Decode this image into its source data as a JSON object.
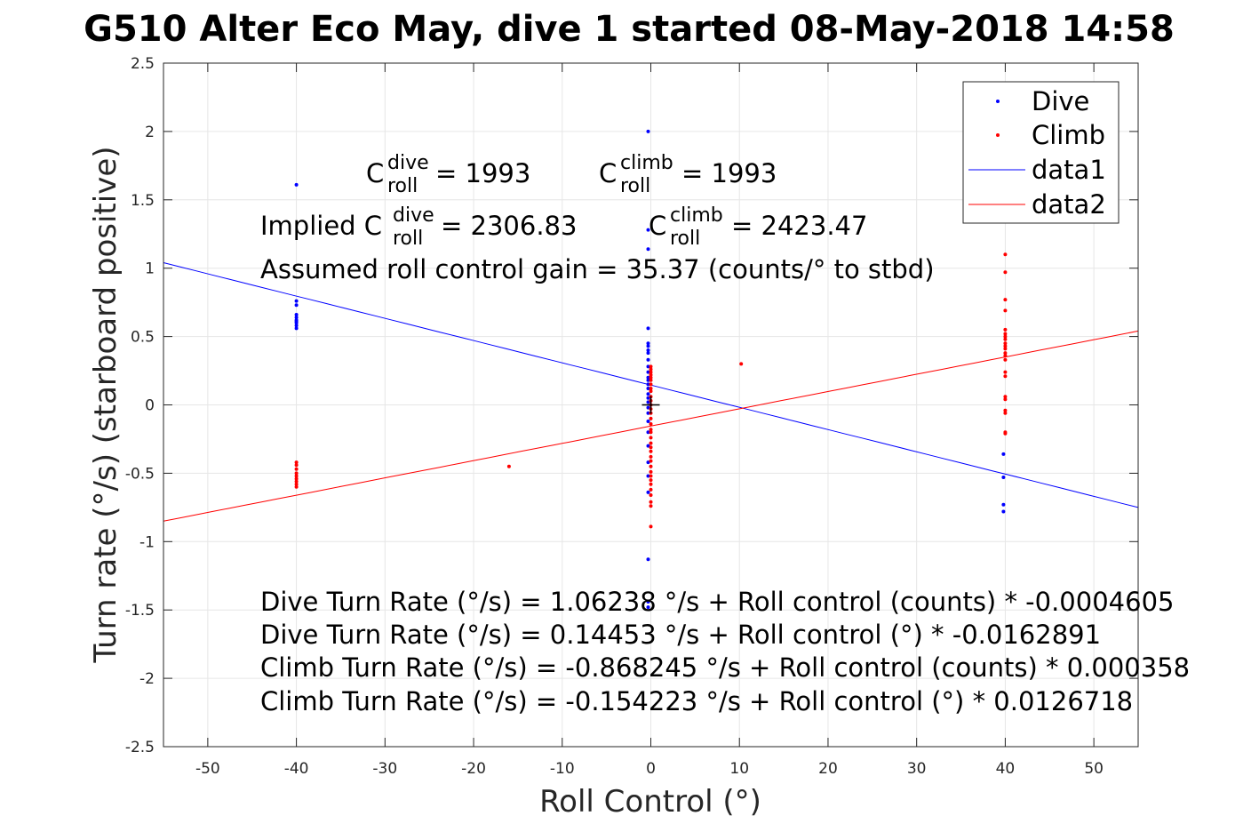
{
  "chart_data": {
    "type": "scatter",
    "title": "G510 Alter Eco May, dive 1 started 08-May-2018 14:58",
    "xlabel": "Roll Control (°)",
    "ylabel": "Turn rate (°/s) (starboard positive)",
    "xlim": [
      -55,
      55
    ],
    "ylim": [
      -2.5,
      2.5
    ],
    "xticks": [
      -50,
      -40,
      -30,
      -20,
      -10,
      0,
      10,
      20,
      30,
      40,
      50
    ],
    "xtick_labels": [
      "-50",
      "-40",
      "-30",
      "-20",
      "-10",
      "0",
      "10",
      "20",
      "30",
      "40",
      "50"
    ],
    "yticks": [
      2.5,
      2,
      1.5,
      1,
      0.5,
      0,
      -0.5,
      -1,
      -1.5,
      -2,
      -2.5
    ],
    "ytick_labels": [
      "2.5",
      "2",
      "1.5",
      "1",
      "0.5",
      "0",
      "-0.5",
      "-1",
      "-1.5",
      "-2",
      "-2.5"
    ],
    "grid": true,
    "legend_position": "top-right",
    "colors": {
      "dive": "#0000ff",
      "climb": "#ff0000",
      "axes": "#262626",
      "grid": "#e6e6e6"
    },
    "series": [
      {
        "name": "Dive",
        "kind": "points",
        "color": "#0000ff",
        "x": [
          -40,
          -40,
          -40,
          -40,
          -40,
          -40,
          -40,
          -40,
          -40,
          -40,
          -0.3,
          -0.3,
          -0.3,
          -0.3,
          -0.3,
          -0.3,
          -0.3,
          -0.3,
          -0.3,
          -0.3,
          -0.3,
          -0.3,
          -0.3,
          -0.3,
          -0.3,
          -0.3,
          -0.3,
          -0.3,
          -0.3,
          -0.3,
          -0.3,
          -0.3,
          -0.3,
          -0.3,
          -0.3,
          -0.3,
          -0.3,
          -0.3,
          -0.3,
          39.8,
          39.8,
          39.8,
          39.8
        ],
        "y": [
          1.61,
          0.76,
          0.73,
          0.66,
          0.64,
          0.62,
          0.61,
          0.6,
          0.58,
          0.56,
          2.0,
          1.28,
          1.14,
          0.56,
          0.45,
          0.43,
          0.4,
          0.38,
          0.33,
          0.28,
          0.24,
          0.2,
          0.18,
          0.15,
          0.12,
          0.08,
          0.05,
          0.02,
          -0.02,
          -0.06,
          -0.12,
          -0.2,
          -0.3,
          -0.42,
          -0.52,
          -0.64,
          -1.13,
          -1.44,
          -1.48,
          -0.36,
          -0.53,
          -0.73,
          -0.78
        ]
      },
      {
        "name": "Climb",
        "kind": "points",
        "color": "#ff0000",
        "x": [
          -40,
          -40,
          -40,
          -40,
          -40,
          -40,
          -40,
          -40,
          -40,
          -16,
          10.2,
          0,
          0,
          0,
          0,
          0,
          0,
          0,
          0,
          0,
          0,
          0,
          0,
          0,
          0,
          0,
          0,
          0,
          0,
          0,
          0,
          0,
          0,
          0,
          0,
          0,
          0,
          0,
          0,
          0,
          0,
          0,
          0,
          0,
          0,
          40,
          40,
          40,
          40,
          40,
          40,
          40,
          40,
          40,
          40,
          40,
          40,
          40,
          40,
          40,
          40,
          40,
          40,
          40,
          40,
          40,
          40
        ],
        "y": [
          -0.42,
          -0.44,
          -0.47,
          -0.5,
          -0.52,
          -0.54,
          -0.56,
          -0.58,
          -0.6,
          -0.45,
          0.3,
          0.28,
          0.26,
          0.24,
          0.22,
          0.2,
          0.18,
          0.15,
          0.12,
          0.1,
          0.06,
          0.03,
          0.0,
          -0.03,
          -0.06,
          -0.1,
          -0.14,
          -0.18,
          -0.2,
          -0.24,
          -0.28,
          -0.31,
          -0.34,
          -0.38,
          -0.41,
          -0.45,
          -0.49,
          -0.52,
          -0.55,
          -0.58,
          -0.62,
          -0.66,
          -0.71,
          -0.74,
          -0.89,
          1.1,
          0.97,
          0.77,
          0.69,
          0.55,
          0.52,
          0.5,
          0.48,
          0.45,
          0.43,
          0.41,
          0.38,
          0.36,
          0.33,
          0.24,
          0.21,
          0.06,
          0.04,
          -0.04,
          -0.06,
          -0.2,
          -0.21
        ]
      },
      {
        "name": "data1",
        "kind": "line",
        "color": "#0000ff",
        "x": [
          -55,
          55
        ],
        "y": [
          1.04,
          -0.75
        ]
      },
      {
        "name": "data2",
        "kind": "line",
        "color": "#ff0000",
        "x": [
          -55,
          55
        ],
        "y": [
          -0.85,
          0.54
        ]
      }
    ],
    "marker": {
      "x": 0,
      "y": 0,
      "symbol": "+"
    },
    "annotations": {
      "c_dive_main": "C",
      "c_dive_sup": "dive",
      "c_dive_sub": "roll",
      "c_dive_val": " = 1993",
      "c_climb_main": "C",
      "c_climb_sup": "climb",
      "c_climb_sub": "roll",
      "c_climb_val": " = 1993",
      "implied_prefix": "Implied C",
      "implied_dive_sup": "dive",
      "implied_dive_sub": "roll",
      "implied_dive_val": " = 2306.83",
      "implied_climb_main": "C",
      "implied_climb_sup": "climb",
      "implied_climb_sub": "roll",
      "implied_climb_val": " = 2423.47",
      "gain": "Assumed roll control gain = 35.37 (counts/° to stbd)",
      "eq1": "Dive Turn Rate (°/s) = 1.06238 °/s + Roll control (counts) * -0.0004605",
      "eq2": "Dive Turn Rate (°/s) = 0.14453 °/s + Roll control (°) * -0.0162891",
      "eq3": "Climb Turn Rate (°/s) = -0.868245 °/s + Roll control (counts) * 0.000358",
      "eq4": "Climb Turn Rate (°/s) = -0.154223 °/s + Roll control (°) * 0.0126718"
    },
    "legend": [
      "Dive",
      "Climb",
      "data1",
      "data2"
    ]
  }
}
